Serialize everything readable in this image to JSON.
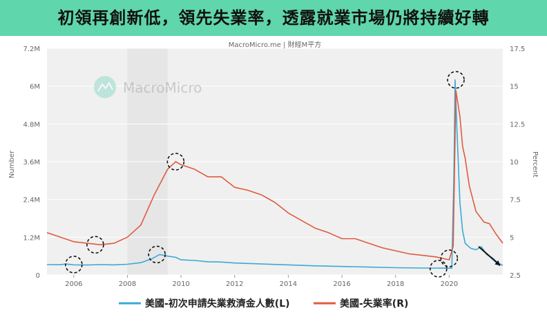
{
  "banner": {
    "title": "初領再創新低，領先失業率，透露就業市場仍將持續好轉",
    "color": "#5fd6ab"
  },
  "chart_data": {
    "type": "line",
    "source_text": "MacroMicro.me | 財經M平方",
    "watermark": "MacroMicro",
    "left_axis": {
      "label": "Number",
      "ticks": [
        "0",
        "1.2M",
        "2.4M",
        "3.6M",
        "4.8M",
        "6M",
        "7.2M"
      ],
      "range": [
        0,
        7200000
      ]
    },
    "right_axis": {
      "label": "Percent",
      "ticks": [
        "2.5",
        "5",
        "7.5",
        "10",
        "12.5",
        "15",
        "17.5"
      ],
      "range": [
        2.5,
        17.5
      ]
    },
    "x_ticks": [
      "2006",
      "2008",
      "2010",
      "2012",
      "2014",
      "2016",
      "2018",
      "2020"
    ],
    "x_range": [
      2005.0,
      2022.0
    ],
    "shaded_period": [
      2008.0,
      2009.5
    ],
    "grid": true,
    "legend_position": "bottom",
    "series": [
      {
        "name": "美國-初次申請失業救濟金人數(L)",
        "axis": "left",
        "color": "#3aa9d6",
        "points": [
          [
            2005.0,
            330000
          ],
          [
            2005.5,
            325000
          ],
          [
            2005.7,
            350000
          ],
          [
            2006.0,
            320000
          ],
          [
            2006.5,
            315000
          ],
          [
            2007.0,
            330000
          ],
          [
            2007.5,
            320000
          ],
          [
            2008.0,
            340000
          ],
          [
            2008.5,
            390000
          ],
          [
            2008.9,
            510000
          ],
          [
            2009.2,
            650000
          ],
          [
            2009.5,
            600000
          ],
          [
            2009.8,
            560000
          ],
          [
            2010.0,
            480000
          ],
          [
            2010.5,
            460000
          ],
          [
            2011.0,
            420000
          ],
          [
            2011.5,
            410000
          ],
          [
            2012.0,
            380000
          ],
          [
            2013.0,
            350000
          ],
          [
            2014.0,
            320000
          ],
          [
            2015.0,
            290000
          ],
          [
            2016.0,
            270000
          ],
          [
            2017.0,
            250000
          ],
          [
            2018.0,
            230000
          ],
          [
            2019.0,
            220000
          ],
          [
            2020.1,
            215000
          ],
          [
            2020.18,
            3300000
          ],
          [
            2020.22,
            6200000
          ],
          [
            2020.3,
            4400000
          ],
          [
            2020.4,
            2300000
          ],
          [
            2020.5,
            1400000
          ],
          [
            2020.6,
            1000000
          ],
          [
            2020.8,
            850000
          ],
          [
            2021.0,
            800000
          ],
          [
            2021.2,
            900000
          ],
          [
            2021.4,
            650000
          ],
          [
            2021.6,
            550000
          ],
          [
            2021.8,
            400000
          ],
          [
            2022.0,
            300000
          ]
        ]
      },
      {
        "name": "美國-失業率(R)",
        "axis": "right",
        "color": "#e05a3c",
        "points": [
          [
            2005.0,
            5.3
          ],
          [
            2005.5,
            5.0
          ],
          [
            2006.0,
            4.7
          ],
          [
            2006.5,
            4.6
          ],
          [
            2007.0,
            4.5
          ],
          [
            2007.5,
            4.6
          ],
          [
            2008.0,
            5.0
          ],
          [
            2008.5,
            5.8
          ],
          [
            2009.0,
            7.8
          ],
          [
            2009.5,
            9.5
          ],
          [
            2009.8,
            10.0
          ],
          [
            2010.0,
            9.8
          ],
          [
            2010.5,
            9.5
          ],
          [
            2011.0,
            9.0
          ],
          [
            2011.5,
            9.0
          ],
          [
            2012.0,
            8.3
          ],
          [
            2012.5,
            8.1
          ],
          [
            2013.0,
            7.8
          ],
          [
            2013.5,
            7.3
          ],
          [
            2014.0,
            6.6
          ],
          [
            2014.5,
            6.1
          ],
          [
            2015.0,
            5.6
          ],
          [
            2015.5,
            5.3
          ],
          [
            2016.0,
            4.9
          ],
          [
            2016.5,
            4.9
          ],
          [
            2017.0,
            4.6
          ],
          [
            2017.5,
            4.3
          ],
          [
            2018.0,
            4.1
          ],
          [
            2018.5,
            3.9
          ],
          [
            2019.0,
            3.8
          ],
          [
            2019.5,
            3.7
          ],
          [
            2020.0,
            3.5
          ],
          [
            2020.15,
            4.4
          ],
          [
            2020.25,
            14.7
          ],
          [
            2020.4,
            13.0
          ],
          [
            2020.5,
            11.0
          ],
          [
            2020.6,
            10.2
          ],
          [
            2020.75,
            8.4
          ],
          [
            2021.0,
            6.7
          ],
          [
            2021.3,
            6.0
          ],
          [
            2021.5,
            5.9
          ],
          [
            2021.75,
            5.2
          ],
          [
            2022.0,
            4.6
          ]
        ]
      }
    ],
    "annotations": [
      {
        "type": "circle",
        "x": 2006.0,
        "y": 330000,
        "axis": "left"
      },
      {
        "type": "circle",
        "x": 2006.8,
        "y": 4.5,
        "axis": "right"
      },
      {
        "type": "circle",
        "x": 2009.1,
        "y": 650000,
        "axis": "left"
      },
      {
        "type": "circle",
        "x": 2009.8,
        "y": 10.0,
        "axis": "right"
      },
      {
        "type": "circle",
        "x": 2019.6,
        "y": 200000,
        "axis": "left"
      },
      {
        "type": "circle",
        "x": 2020.0,
        "y": 3.6,
        "axis": "right"
      },
      {
        "type": "circle",
        "x": 2020.25,
        "y": 6200000,
        "axis": "left"
      },
      {
        "type": "arrow",
        "x1": 2021.1,
        "y1": 900000,
        "x2": 2021.9,
        "y2": 300000,
        "axis": "left"
      }
    ]
  }
}
